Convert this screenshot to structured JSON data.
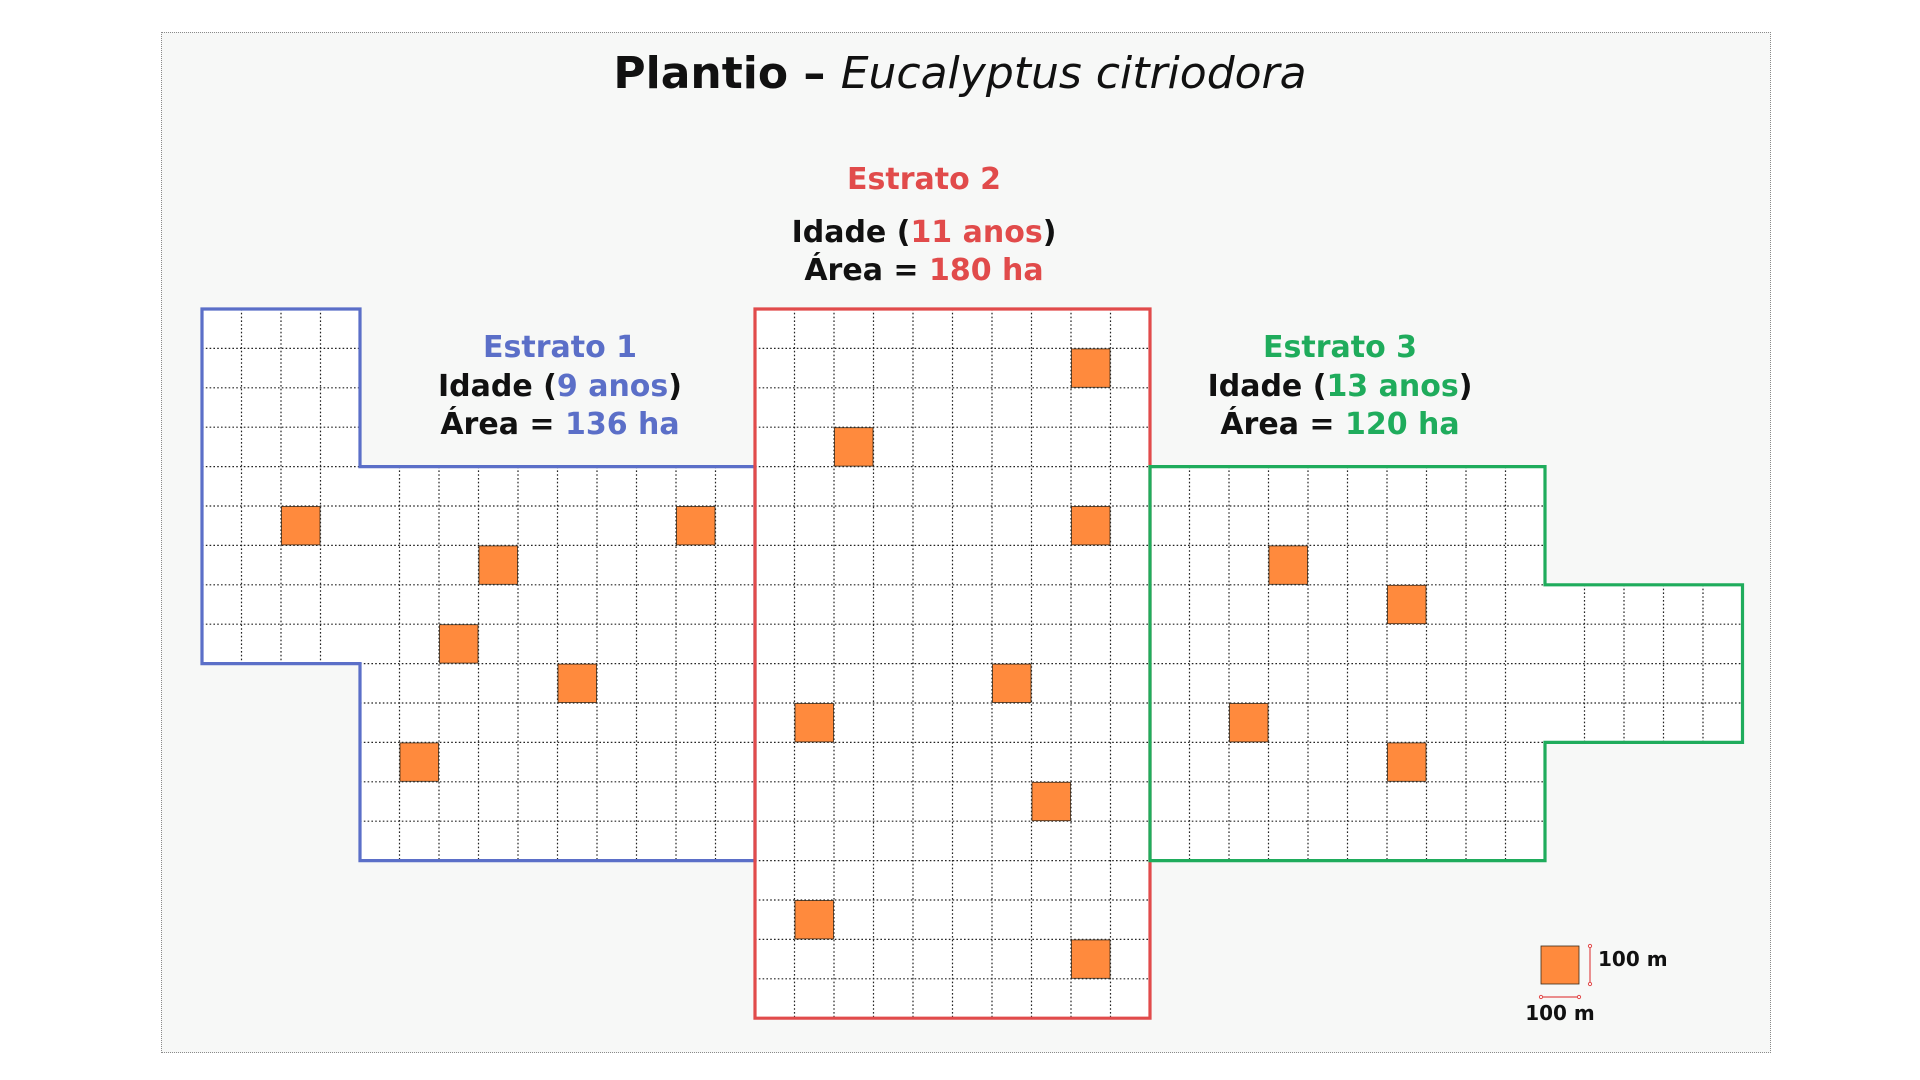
{
  "title": {
    "prefix": "Plantio –",
    "species": "Eucalyptus citriodora"
  },
  "colors": {
    "estrato1": "#5b6fc8",
    "estrato2": "#e14b4b",
    "estrato3": "#1fac5c",
    "sample": "#ff8a3d",
    "grid": "#222222"
  },
  "strata": [
    {
      "name": "Estrato 1",
      "age_label": "Idade (",
      "age_value": "9 anos",
      "age_close": ")",
      "area_label": "Área = ",
      "area_value": "136 ha"
    },
    {
      "name": "Estrato 2",
      "age_label": "Idade (",
      "age_value": "11 anos",
      "age_close": ")",
      "area_label": "Área = ",
      "area_value": "180 ha"
    },
    {
      "name": "Estrato 3",
      "age_label": "Idade (",
      "age_value": "13 anos",
      "age_close": ")",
      "area_label": "Área = ",
      "area_value": "120 ha"
    }
  ],
  "scale": {
    "height_label": "100 m",
    "width_label": "100 m"
  }
}
